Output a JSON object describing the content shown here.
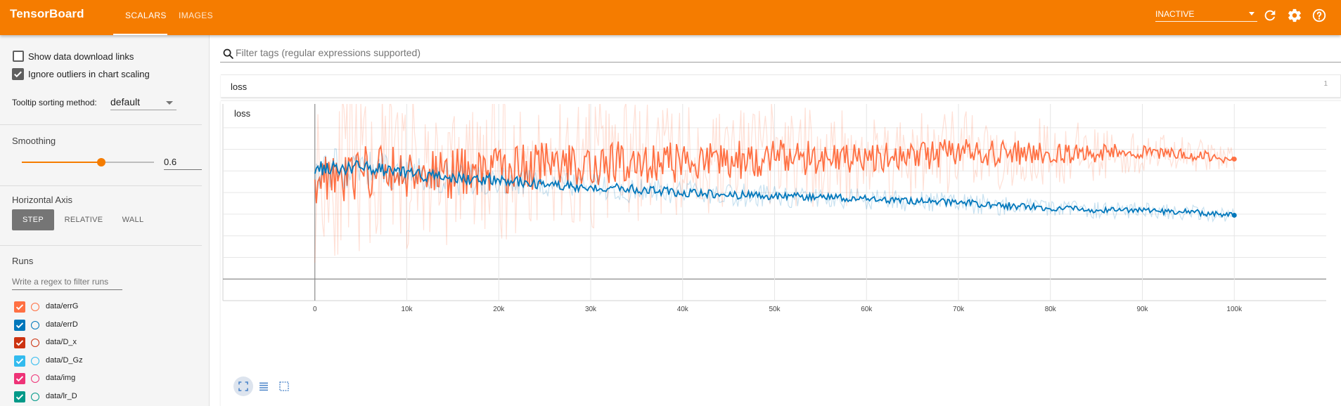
{
  "header": {
    "brand": "TensorBoard",
    "tabs": [
      {
        "label": "SCALARS",
        "active": true
      },
      {
        "label": "IMAGES",
        "active": false
      }
    ],
    "status_select": "INACTIVE",
    "icons": [
      "refresh-icon",
      "settings-icon",
      "help-icon"
    ],
    "colors": {
      "bar": "#f57c00",
      "text": "#ffffff"
    }
  },
  "sidebar": {
    "show_download_links": {
      "label": "Show data download links",
      "checked": false
    },
    "ignore_outliers": {
      "label": "Ignore outliers in chart scaling",
      "checked": true
    },
    "tooltip_sorting": {
      "label": "Tooltip sorting method:",
      "value": "default"
    },
    "smoothing": {
      "label": "Smoothing",
      "value": "0.6",
      "level": 0.6
    },
    "horizontal_axis": {
      "label": "Horizontal Axis",
      "options": [
        {
          "label": "STEP",
          "active": true
        },
        {
          "label": "RELATIVE",
          "active": false
        },
        {
          "label": "WALL",
          "active": false
        }
      ]
    },
    "runs": {
      "label": "Runs",
      "filter_placeholder": "Write a regex to filter runs",
      "items": [
        {
          "label": "data/errG",
          "color": "#ff7043",
          "checked": true
        },
        {
          "label": "data/errD",
          "color": "#0077bb",
          "checked": true
        },
        {
          "label": "data/D_x",
          "color": "#cc3311",
          "checked": true
        },
        {
          "label": "data/D_Gz",
          "color": "#33bbee",
          "checked": true
        },
        {
          "label": "data/img",
          "color": "#ee3377",
          "checked": true
        },
        {
          "label": "data/lr_D",
          "color": "#009988",
          "checked": true
        }
      ]
    }
  },
  "main": {
    "filter_placeholder": "Filter tags (regular expressions supported)",
    "group": {
      "title": "loss",
      "count": "1"
    },
    "chart_title": "loss"
  },
  "chart_data": {
    "type": "line",
    "title": "loss",
    "xlabel": "",
    "ylabel": "",
    "x_ticks": [
      "0",
      "10k",
      "20k",
      "30k",
      "40k",
      "50k",
      "60k",
      "70k",
      "80k",
      "90k",
      "100k"
    ],
    "y_ticks": [
      "0",
      "0.2",
      "0.4",
      "0.6",
      "0.8",
      "1",
      "1.2",
      "1.4"
    ],
    "xlim": [
      -10000,
      110000
    ],
    "ylim": [
      -0.2,
      1.62
    ],
    "grid": true,
    "smoothing": 0.6,
    "series": [
      {
        "name": "data/errG",
        "color": "#ff7043",
        "x": [
          0,
          5000,
          10000,
          15000,
          20000,
          25000,
          30000,
          35000,
          40000,
          45000,
          50000,
          55000,
          60000,
          65000,
          70000,
          75000,
          80000,
          85000,
          90000,
          95000,
          100000
        ],
        "smoothed": [
          0.95,
          0.98,
          1.0,
          0.97,
          1.02,
          1.05,
          1.07,
          1.08,
          1.08,
          1.1,
          1.12,
          1.12,
          1.14,
          1.14,
          1.16,
          1.17,
          1.16,
          1.17,
          1.17,
          1.15,
          1.11
        ],
        "spread": [
          0.5,
          0.45,
          0.45,
          0.42,
          0.42,
          0.4,
          0.38,
          0.36,
          0.35,
          0.33,
          0.32,
          0.3,
          0.28,
          0.27,
          0.25,
          0.22,
          0.2,
          0.16,
          0.12,
          0.1,
          0.08
        ]
      },
      {
        "name": "data/errD",
        "color": "#0077bb",
        "x": [
          0,
          5000,
          10000,
          15000,
          20000,
          25000,
          30000,
          35000,
          40000,
          45000,
          50000,
          55000,
          60000,
          65000,
          70000,
          75000,
          80000,
          85000,
          90000,
          95000,
          100000
        ],
        "smoothed": [
          1.02,
          1.03,
          0.98,
          0.93,
          0.92,
          0.87,
          0.85,
          0.83,
          0.8,
          0.78,
          0.77,
          0.76,
          0.74,
          0.72,
          0.71,
          0.68,
          0.66,
          0.64,
          0.63,
          0.62,
          0.59
        ],
        "spread": [
          0.14,
          0.12,
          0.1,
          0.1,
          0.09,
          0.08,
          0.08,
          0.08,
          0.07,
          0.07,
          0.07,
          0.06,
          0.06,
          0.06,
          0.06,
          0.06,
          0.05,
          0.05,
          0.05,
          0.05,
          0.04
        ]
      }
    ]
  }
}
